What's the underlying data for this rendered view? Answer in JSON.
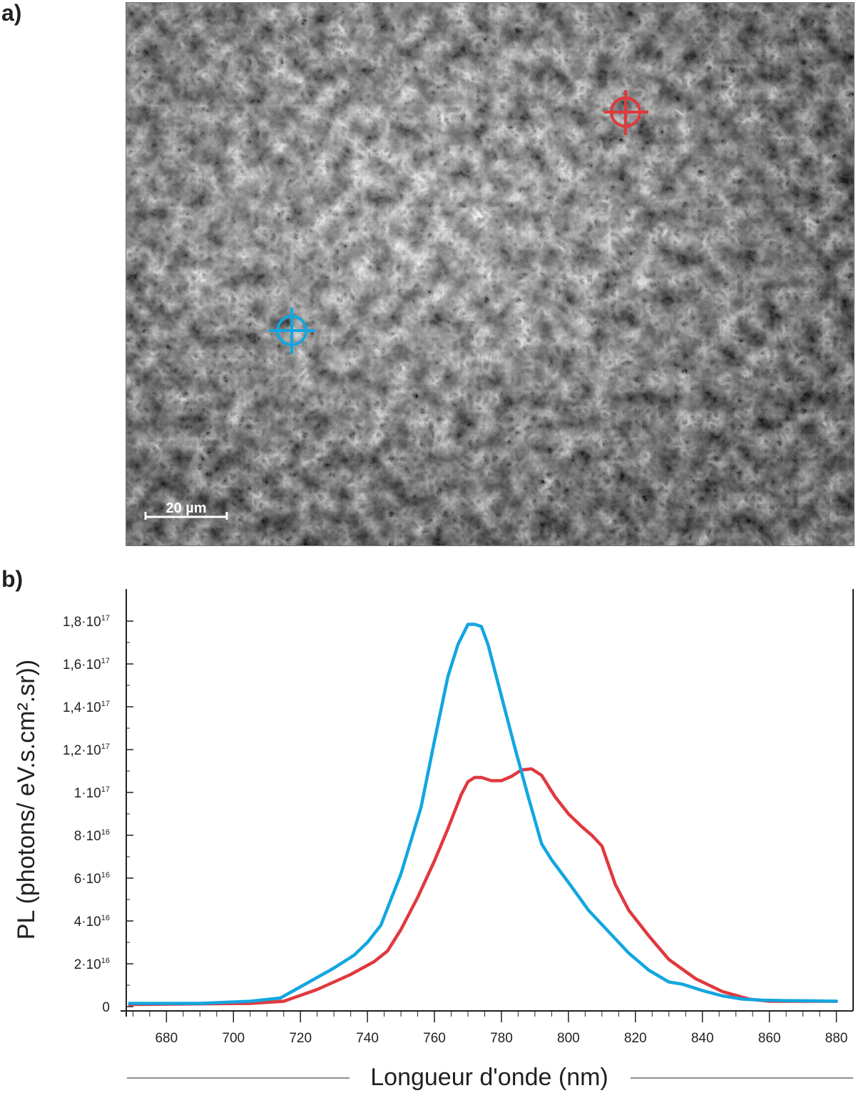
{
  "panel_labels": {
    "a": "a)",
    "b": "b)"
  },
  "micrograph": {
    "scale_bar_label": "20 µm",
    "markers": [
      {
        "name": "red-marker",
        "color": "#e0393e"
      },
      {
        "name": "blue-marker",
        "color": "#12a6e0"
      }
    ]
  },
  "chart_data": {
    "type": "line",
    "xlabel": "Longueur d'onde (nm)",
    "ylabel": "PL (photons/ eV.s.cm².sr))",
    "xlim": [
      668,
      885
    ],
    "ylim": [
      -2000000000000000.0,
      1.95e+17
    ],
    "x_ticks": [
      680,
      700,
      720,
      740,
      760,
      780,
      800,
      820,
      840,
      860,
      880
    ],
    "y_ticks": [
      {
        "value": 0,
        "mantissa": "0",
        "exponent": ""
      },
      {
        "value": 2e+16,
        "mantissa": "2·10",
        "exponent": "16"
      },
      {
        "value": 4e+16,
        "mantissa": "4·10",
        "exponent": "16"
      },
      {
        "value": 6e+16,
        "mantissa": "6·10",
        "exponent": "16"
      },
      {
        "value": 8e+16,
        "mantissa": "8·10",
        "exponent": "16"
      },
      {
        "value": 1e+17,
        "mantissa": "1·10",
        "exponent": "17"
      },
      {
        "value": 1.2e+17,
        "mantissa": "1,2·10",
        "exponent": "17"
      },
      {
        "value": 1.4e+17,
        "mantissa": "1,4·10",
        "exponent": "17"
      },
      {
        "value": 1.6e+17,
        "mantissa": "1,6·10",
        "exponent": "17"
      },
      {
        "value": 1.8e+17,
        "mantissa": "1,8·10",
        "exponent": "17"
      }
    ],
    "series": [
      {
        "color": "#e0393e",
        "x": [
          669,
          690,
          705,
          715,
          725,
          735,
          742,
          746,
          750,
          755,
          760,
          764,
          768,
          770,
          772,
          774,
          777,
          780,
          783,
          786,
          789,
          792,
          796,
          800,
          804,
          807,
          810,
          814,
          818,
          824,
          830,
          838,
          846,
          854,
          860,
          870,
          880
        ],
        "y": [
          1000000000000000.0,
          1300000000000000.0,
          1500000000000000.0,
          2500000000000000.0,
          8000000000000000.0,
          1.5e+16,
          2.1e+16,
          2.6e+16,
          3.6e+16,
          5.1e+16,
          6.8e+16,
          8.3e+16,
          9.9e+16,
          1.05e+17,
          1.07e+17,
          1.07e+17,
          1.055e+17,
          1.055e+17,
          1.075e+17,
          1.105e+17,
          1.11e+17,
          1.08e+17,
          9.8e+16,
          9e+16,
          8.4e+16,
          8e+16,
          7.5e+16,
          5.7e+16,
          4.5e+16,
          3.3e+16,
          2.2e+16,
          1.3e+16,
          7000000000000000.0,
          3500000000000000.0,
          2500000000000000.0,
          2500000000000000.0,
          2500000000000000.0
        ]
      },
      {
        "color": "#12a6e0",
        "x": [
          669,
          690,
          705,
          714,
          722,
          730,
          736,
          740,
          744,
          750,
          756,
          760,
          764,
          767,
          770,
          772,
          774,
          776,
          780,
          784,
          788,
          792,
          795,
          800,
          806,
          812,
          818,
          824,
          830,
          834,
          840,
          846,
          852,
          858,
          865,
          872,
          880
        ],
        "y": [
          1500000000000000.0,
          1500000000000000.0,
          2500000000000000.0,
          4000000000000000.0,
          1.1e+16,
          1.8e+16,
          2.4e+16,
          3e+16,
          3.8e+16,
          6.2e+16,
          9.3e+16,
          1.24e+17,
          1.54e+17,
          1.69e+17,
          1.785e+17,
          1.785e+17,
          1.775e+17,
          1.69e+17,
          1.45e+17,
          1.21e+17,
          9.8e+16,
          7.6e+16,
          6.85e+16,
          5.8e+16,
          4.5e+16,
          3.5e+16,
          2.5e+16,
          1.7e+16,
          1.15e+16,
          1.05e+16,
          7500000000000000.0,
          5000000000000000.0,
          3500000000000000.0,
          3000000000000000.0,
          2800000000000000.0,
          2700000000000000.0,
          2500000000000000.0
        ]
      }
    ]
  }
}
